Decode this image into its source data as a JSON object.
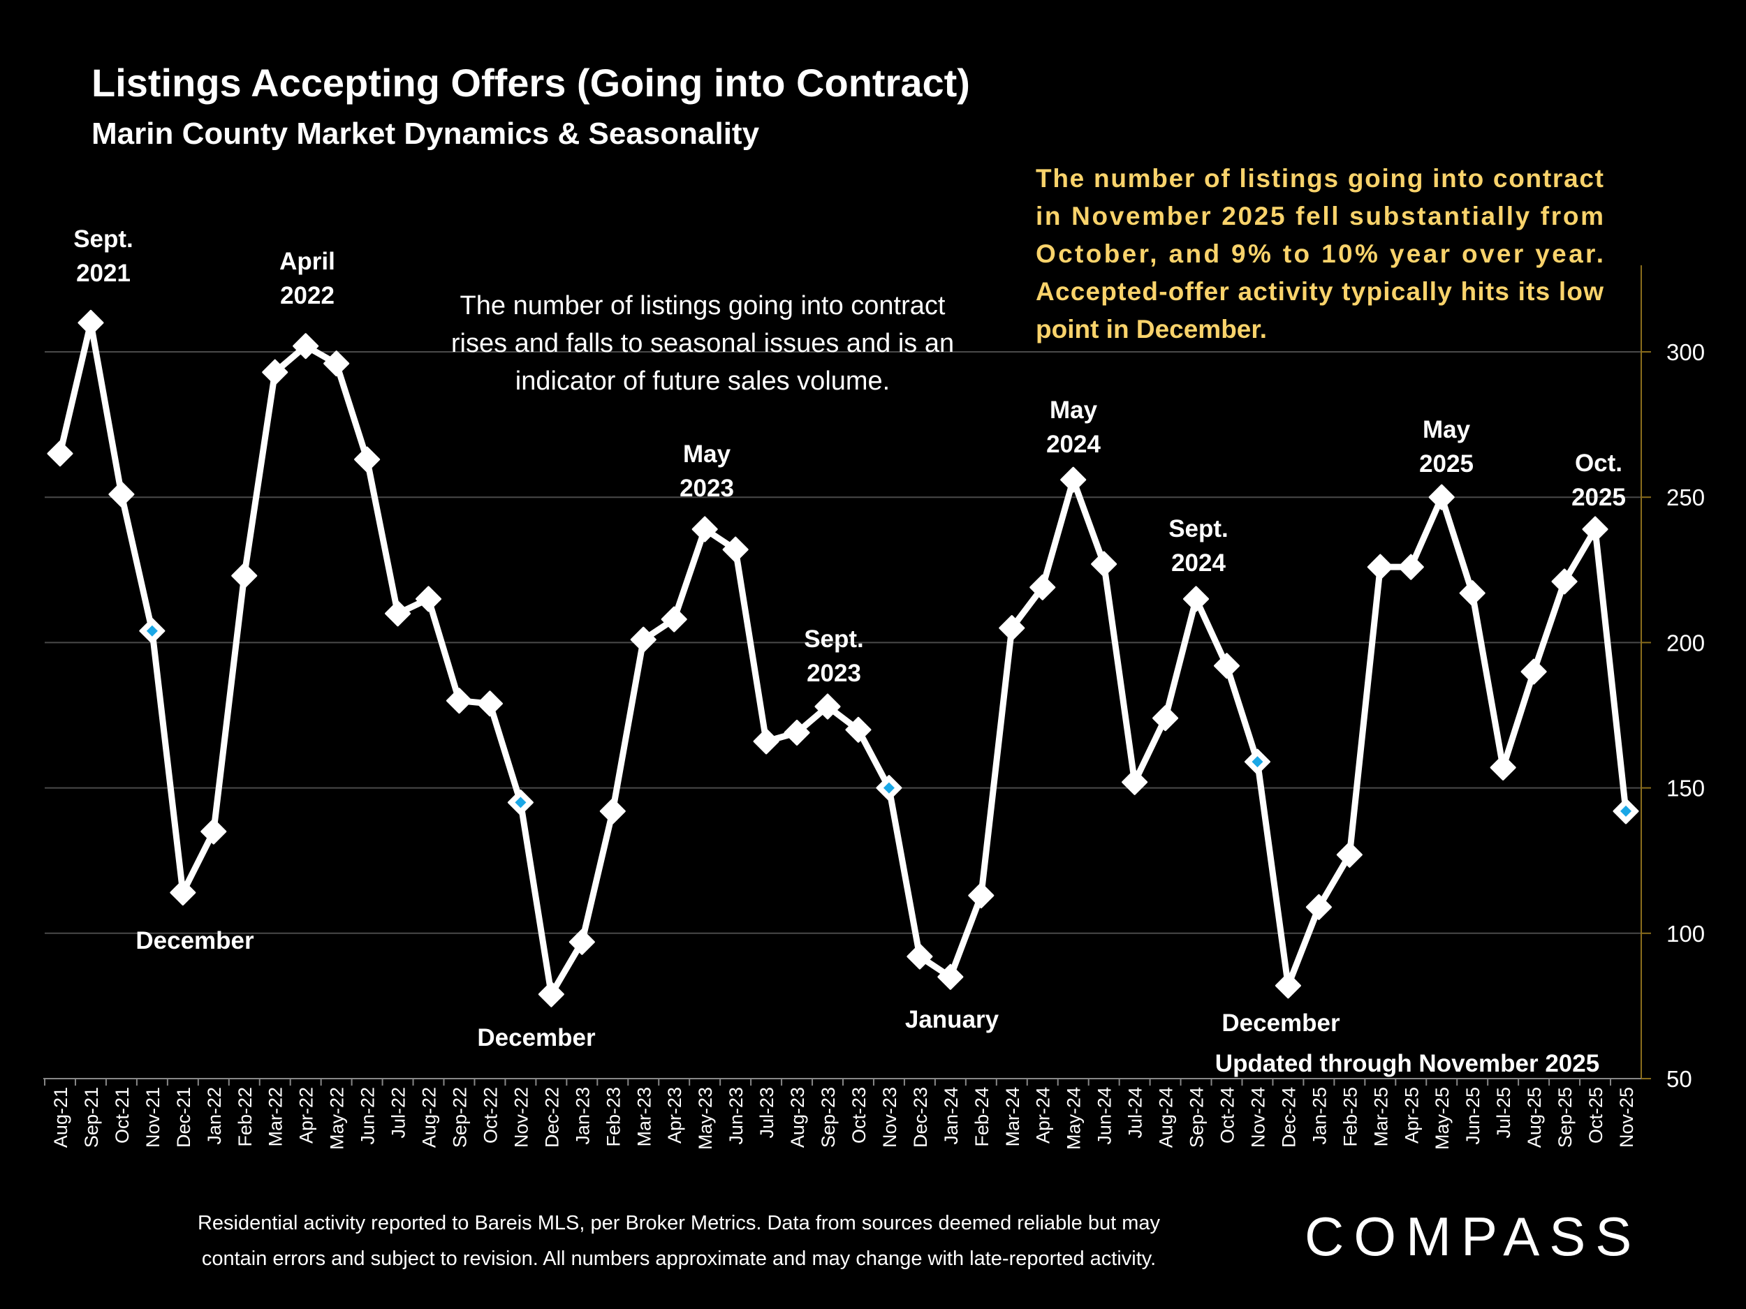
{
  "title": "Listings Accepting Offers (Going into Contract)",
  "subtitle": "Marin County Market Dynamics & Seasonality",
  "center_note": [
    "The number of listings going into contract",
    "rises and falls to seasonal issues and is an",
    "indicator of future sales volume."
  ],
  "highlight_note": [
    "The number of listings going into contract",
    "in November 2025 fell substantially from",
    "October, and 9% to 10% year over year.",
    "Accepted-offer activity typically hits its low",
    "point in December."
  ],
  "updated_label": "Updated through November 2025",
  "footer": [
    "Residential activity reported to Bareis MLS, per Broker Metrics. Data from sources deemed reliable but may",
    "contain errors and subject to revision. All numbers approximate and may change with late-reported activity."
  ],
  "logo": "COMPASS",
  "colors": {
    "line": "#ffffff",
    "highlight_marker": "#1aa7e6",
    "axis": "#8a6d1c",
    "grid": "#4a4a4a",
    "note": "#f9d36b"
  },
  "chart_data": {
    "type": "line",
    "title": "Listings Accepting Offers (Going into Contract)",
    "xlabel": "",
    "ylabel": "",
    "ylim": [
      50,
      300
    ],
    "yticks": [
      50,
      100,
      150,
      200,
      250,
      300
    ],
    "grid": true,
    "y_axis_side": "right",
    "categories": [
      "Aug-21",
      "Sep-21",
      "Oct-21",
      "Nov-21",
      "Dec-21",
      "Jan-22",
      "Feb-22",
      "Mar-22",
      "Apr-22",
      "May-22",
      "Jun-22",
      "Jul-22",
      "Aug-22",
      "Sep-22",
      "Oct-22",
      "Nov-22",
      "Dec-22",
      "Jan-23",
      "Feb-23",
      "Mar-23",
      "Apr-23",
      "May-23",
      "Jun-23",
      "Jul-23",
      "Aug-23",
      "Sep-23",
      "Oct-23",
      "Nov-23",
      "Dec-23",
      "Jan-24",
      "Feb-24",
      "Mar-24",
      "Apr-24",
      "May-24",
      "Jun-24",
      "Jul-24",
      "Aug-24",
      "Sep-24",
      "Oct-24",
      "Nov-24",
      "Dec-24",
      "Jan-25",
      "Feb-25",
      "Mar-25",
      "Apr-25",
      "May-25",
      "Jun-25",
      "Jul-25",
      "Aug-25",
      "Sep-25",
      "Oct-25",
      "Nov-25"
    ],
    "series": [
      {
        "name": "Listings accepting offers",
        "values": [
          265,
          310,
          251,
          204,
          114,
          135,
          223,
          293,
          302,
          296,
          263,
          210,
          215,
          180,
          179,
          145,
          79,
          97,
          142,
          201,
          208,
          239,
          232,
          166,
          169,
          178,
          170,
          150,
          92,
          85,
          113,
          205,
          219,
          256,
          227,
          152,
          174,
          215,
          192,
          159,
          82,
          109,
          127,
          226,
          226,
          250,
          217,
          157,
          190,
          221,
          239,
          142
        ],
        "highlighted": [
          "Nov-21",
          "Nov-22",
          "Nov-23",
          "Nov-24",
          "Nov-25"
        ]
      }
    ],
    "annotations": [
      {
        "lines": [
          "Sept.",
          "2021"
        ],
        "category": "Sep-21"
      },
      {
        "lines": [
          "April",
          "2022"
        ],
        "category": "Apr-22"
      },
      {
        "lines": [
          "December"
        ],
        "category": "Dec-21"
      },
      {
        "lines": [
          "December"
        ],
        "category": "Dec-22"
      },
      {
        "lines": [
          "May",
          "2023"
        ],
        "category": "May-23"
      },
      {
        "lines": [
          "Sept.",
          "2023"
        ],
        "category": "Sep-23"
      },
      {
        "lines": [
          "January"
        ],
        "category": "Jan-24"
      },
      {
        "lines": [
          "May",
          "2024"
        ],
        "category": "May-24"
      },
      {
        "lines": [
          "Sept.",
          "2024"
        ],
        "category": "Sep-24"
      },
      {
        "lines": [
          "December"
        ],
        "category": "Dec-24"
      },
      {
        "lines": [
          "May",
          "2025"
        ],
        "category": "May-25"
      },
      {
        "lines": [
          "Oct.",
          "2025"
        ],
        "category": "Oct-25"
      }
    ]
  }
}
